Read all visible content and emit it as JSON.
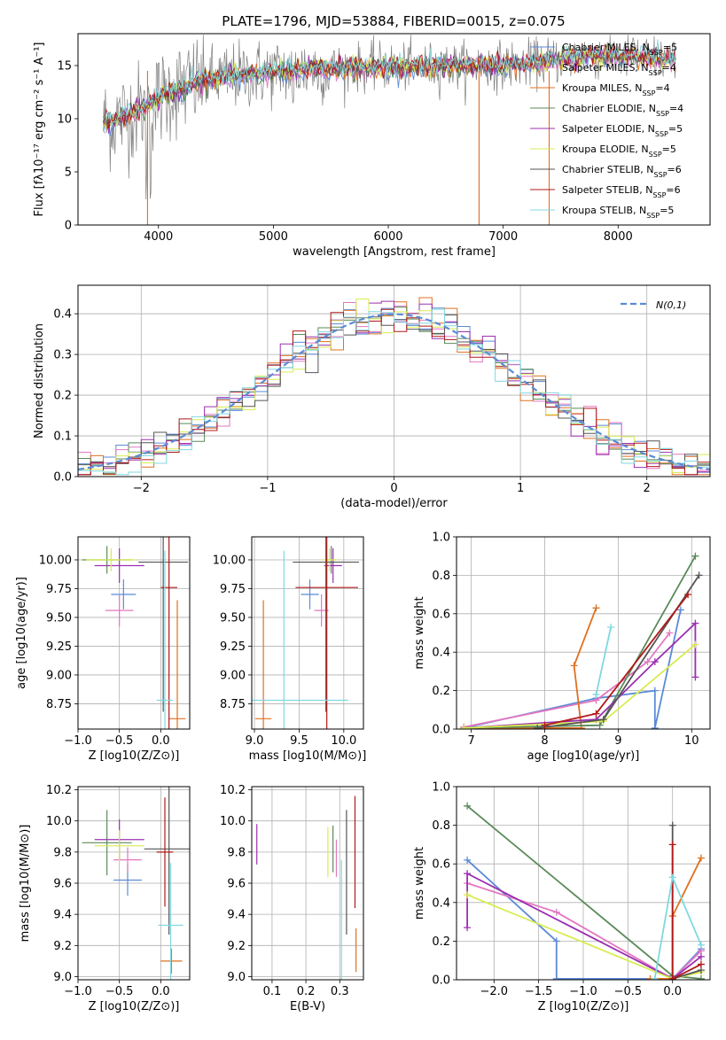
{
  "figure_title": "PLATE=1796, MJD=53884, FIBERID=0015, z=0.075",
  "colors": {
    "chabrier_miles": "#5b8bd6",
    "salpeter_miles": "#e377c2",
    "kroupa_miles": "#e07020",
    "chabrier_elodie": "#5a8a5a",
    "salpeter_elodie": "#9b30b0",
    "kroupa_elodie": "#d8ec50",
    "chabrier_stelib": "#555555",
    "salpeter_stelib": "#b01818",
    "kroupa_stelib": "#80d8e0",
    "normal": "#5b8bd6"
  },
  "chart_data": [
    {
      "id": "spectrum",
      "type": "line",
      "title": "PLATE=1796, MJD=53884, FIBERID=0015, z=0.075",
      "xlabel": "wavelength [Angstrom, rest frame]",
      "ylabel": "Flux [fλ10⁻¹⁷ erg cm⁻² s⁻¹ A⁻¹]",
      "xlim": [
        3300,
        8800
      ],
      "ylim": [
        0,
        18
      ],
      "xticks": [
        4000,
        5000,
        6000,
        7000,
        8000
      ],
      "yticks": [
        0,
        5,
        10,
        15
      ],
      "legend_position": "right",
      "legend": [
        "Chabrier MILES, N_SSP=5",
        "Salpeter MILES, N_SSP=4",
        "Kroupa MILES, N_SSP=4",
        "Chabrier ELODIE, N_SSP=4",
        "Salpeter ELODIE, N_SSP=5",
        "Kroupa ELODIE, N_SSP=5",
        "Chabrier STELIB, N_SSP=6",
        "Salpeter STELIB, N_SSP=6",
        "Kroupa STELIB, N_SSP=5"
      ],
      "continuum": {
        "x": [
          3520,
          3700,
          3900,
          4100,
          4400,
          4800,
          5200,
          5600,
          6000,
          6400,
          6800,
          7200,
          7400,
          7800,
          8200,
          8500
        ],
        "y": [
          9.5,
          10.2,
          11.2,
          12.5,
          13.6,
          14.2,
          14.6,
          14.8,
          14.9,
          14.9,
          15.0,
          15.1,
          15.5,
          16.0,
          15.8,
          15.5
        ]
      }
    },
    {
      "id": "residuals",
      "type": "histogram",
      "xlabel": "(data-model)/error",
      "ylabel": "Normed distribution",
      "xlim": [
        -2.5,
        2.5
      ],
      "ylim": [
        0,
        0.47
      ],
      "xticks": [
        -2,
        -1,
        0,
        1,
        2
      ],
      "yticks": [
        0.0,
        0.1,
        0.2,
        0.3,
        0.4
      ],
      "grid": true,
      "legend_position": "top-right",
      "legend": [
        "N(0,1)"
      ]
    },
    {
      "id": "age_vs_Z",
      "type": "errorbar",
      "xlabel": "Z [log10(Z/Z⊙)]",
      "ylabel": "age [log10(age/yr)]",
      "xlim": [
        -1.0,
        0.35
      ],
      "ylim": [
        8.53,
        10.2
      ],
      "xticks": [
        -1.0,
        -0.5,
        0.0
      ],
      "yticks": [
        8.75,
        9.0,
        9.25,
        9.5,
        9.75,
        10.0
      ],
      "grid": true,
      "points": [
        {
          "model": "chabrier_miles",
          "x": -0.45,
          "xerr": 0.15,
          "y": 9.7,
          "yerr": 0.13
        },
        {
          "model": "salpeter_miles",
          "x": -0.5,
          "xerr": 0.17,
          "y": 9.56,
          "yerr": 0.14
        },
        {
          "model": "kroupa_miles",
          "x": 0.2,
          "xerr": 0.1,
          "y": 8.62,
          "yerr": 1.03
        },
        {
          "model": "chabrier_elodie",
          "x": -0.65,
          "xerr": 0.3,
          "y": 10.0,
          "yerr": 0.12
        },
        {
          "model": "salpeter_elodie",
          "x": -0.5,
          "xerr": 0.3,
          "y": 9.95,
          "yerr": 0.15
        },
        {
          "model": "kroupa_elodie",
          "x": -0.6,
          "xerr": 0.3,
          "y": 10.0,
          "yerr": 0.1
        },
        {
          "model": "chabrier_stelib",
          "x": 0.03,
          "xerr": 0.3,
          "y": 9.98,
          "yerr": 1.3
        },
        {
          "model": "salpeter_stelib",
          "x": 0.1,
          "xerr": 0.1,
          "y": 9.76,
          "yerr": 1.3
        },
        {
          "model": "kroupa_stelib",
          "x": 0.05,
          "xerr": 0.1,
          "y": 8.78,
          "yerr": 1.3
        }
      ]
    },
    {
      "id": "age_vs_mass",
      "type": "errorbar",
      "xlabel": "mass [log10(M/M⊙)]",
      "ylim": [
        8.53,
        10.2
      ],
      "xlim": [
        8.97,
        10.22
      ],
      "xticks": [
        9.0,
        9.5,
        10.0
      ],
      "yticks": [
        8.75,
        9.0,
        9.25,
        9.5,
        9.75,
        10.0
      ],
      "grid": true,
      "points": [
        {
          "model": "chabrier_miles",
          "x": 9.62,
          "xerr": 0.1,
          "y": 9.7,
          "yerr": 0.13
        },
        {
          "model": "salpeter_miles",
          "x": 9.75,
          "xerr": 0.08,
          "y": 9.56,
          "yerr": 0.14
        },
        {
          "model": "kroupa_miles",
          "x": 9.1,
          "xerr": 0.09,
          "y": 8.62,
          "yerr": 1.03
        },
        {
          "model": "chabrier_elodie",
          "x": 9.86,
          "xerr": 0.05,
          "y": 10.0,
          "yerr": 0.12
        },
        {
          "model": "salpeter_elodie",
          "x": 9.88,
          "xerr": 0.1,
          "y": 9.95,
          "yerr": 0.15
        },
        {
          "model": "kroupa_elodie",
          "x": 9.84,
          "xerr": 0.08,
          "y": 10.0,
          "yerr": 0.1
        },
        {
          "model": "chabrier_stelib",
          "x": 9.8,
          "xerr": 0.37,
          "y": 9.98,
          "yerr": 1.3
        },
        {
          "model": "salpeter_stelib",
          "x": 9.81,
          "xerr": 0.35,
          "y": 9.76,
          "yerr": 1.3
        },
        {
          "model": "kroupa_stelib",
          "x": 9.33,
          "xerr": 0.72,
          "y": 8.78,
          "yerr": 1.3
        }
      ]
    },
    {
      "id": "mass_vs_Z",
      "type": "errorbar",
      "xlabel": "Z [log10(Z/Z⊙)]",
      "ylabel": "mass [log10(M/M⊙)]",
      "xlim": [
        -1.0,
        0.35
      ],
      "ylim": [
        8.98,
        10.22
      ],
      "xticks": [
        -1.0,
        -0.5,
        0.0
      ],
      "yticks": [
        9.0,
        9.2,
        9.4,
        9.6,
        9.8,
        10.0,
        10.2
      ],
      "grid": true,
      "points": [
        {
          "model": "chabrier_miles",
          "x": -0.4,
          "xerr": 0.17,
          "y": 9.62,
          "yerr": 0.1
        },
        {
          "model": "salpeter_miles",
          "x": -0.4,
          "xerr": 0.17,
          "y": 9.75,
          "yerr": 0.08
        },
        {
          "model": "kroupa_miles",
          "x": 0.13,
          "xerr": 0.13,
          "y": 9.1,
          "yerr": 0.08
        },
        {
          "model": "chabrier_elodie",
          "x": -0.65,
          "xerr": 0.3,
          "y": 9.86,
          "yerr": 0.21
        },
        {
          "model": "salpeter_elodie",
          "x": -0.5,
          "xerr": 0.3,
          "y": 9.88,
          "yerr": 0.13
        },
        {
          "model": "kroupa_elodie",
          "x": -0.5,
          "xerr": 0.3,
          "y": 9.84,
          "yerr": 0.1
        },
        {
          "model": "chabrier_stelib",
          "x": 0.1,
          "xerr": 0.3,
          "y": 9.82,
          "yerr": 0.55
        },
        {
          "model": "salpeter_stelib",
          "x": 0.05,
          "xerr": 0.1,
          "y": 9.8,
          "yerr": 0.35
        },
        {
          "model": "kroupa_stelib",
          "x": 0.12,
          "xerr": 0.15,
          "y": 9.33,
          "yerr": 0.4
        }
      ]
    },
    {
      "id": "mass_vs_ebv",
      "type": "errorbar",
      "xlabel": "E(B-V)",
      "xlim": [
        0.04,
        0.37
      ],
      "ylim": [
        8.98,
        10.22
      ],
      "xticks": [
        0.1,
        0.2,
        0.3
      ],
      "yticks": [
        9.0,
        9.2,
        9.4,
        9.6,
        9.8,
        10.0,
        10.2
      ],
      "grid": true,
      "points": [
        {
          "model": "salpeter_elodie",
          "x": 0.055,
          "xerr": 0,
          "y": 9.85,
          "yerr": 0.13
        },
        {
          "model": "kroupa_elodie",
          "x": 0.265,
          "xerr": 0,
          "y": 9.8,
          "yerr": 0.16
        },
        {
          "model": "chabrier_elodie",
          "x": 0.28,
          "xerr": 0,
          "y": 9.82,
          "yerr": 0.15
        },
        {
          "model": "salpeter_miles",
          "x": 0.29,
          "xerr": 0,
          "y": 9.76,
          "yerr": 0.12
        },
        {
          "model": "kroupa_stelib",
          "x": 0.305,
          "xerr": 0,
          "y": 9.35,
          "yerr": 0.4
        },
        {
          "model": "chabrier_stelib",
          "x": 0.32,
          "xerr": 0,
          "y": 9.67,
          "yerr": 0.4
        },
        {
          "model": "salpeter_stelib",
          "x": 0.345,
          "xerr": 0,
          "y": 9.8,
          "yerr": 0.36
        },
        {
          "model": "kroupa_miles",
          "x": 0.348,
          "xerr": 0,
          "y": 9.17,
          "yerr": 0.14
        }
      ]
    },
    {
      "id": "massweight_vs_age",
      "type": "line",
      "xlabel": "age [log10(age/yr)]",
      "ylabel": "mass weight",
      "xlim": [
        6.8,
        10.25
      ],
      "ylim": [
        0,
        1.0
      ],
      "xticks": [
        7,
        8,
        9,
        10
      ],
      "yticks": [
        0.0,
        0.2,
        0.4,
        0.6,
        0.8,
        1.0
      ],
      "grid": true,
      "series": [
        {
          "model": "chabrier_miles",
          "x": [
            6.9,
            8.7,
            9.5,
            9.5,
            9.85
          ],
          "y": [
            0.005,
            0.16,
            0.2,
            0.005,
            0.62
          ]
        },
        {
          "model": "salpeter_miles",
          "x": [
            6.9,
            8.7,
            9.4,
            9.7
          ],
          "y": [
            0.01,
            0.15,
            0.35,
            0.5
          ]
        },
        {
          "model": "kroupa_miles",
          "x": [
            6.9,
            8.5,
            8.4,
            8.7
          ],
          "y": [
            0.005,
            0.005,
            0.33,
            0.63
          ]
        },
        {
          "model": "chabrier_elodie",
          "x": [
            6.9,
            8.75,
            10.05
          ],
          "y": [
            0.005,
            0.02,
            0.9
          ]
        },
        {
          "model": "salpeter_elodie",
          "x": [
            6.9,
            8.7,
            9.5,
            10.05,
            10.05
          ],
          "y": [
            0.005,
            0.05,
            0.35,
            0.55,
            0.27
          ]
        },
        {
          "model": "kroupa_elodie",
          "x": [
            6.9,
            8.8,
            10.05
          ],
          "y": [
            0.005,
            0.04,
            0.44
          ]
        },
        {
          "model": "chabrier_stelib",
          "x": [
            7.9,
            8.8,
            10.1
          ],
          "y": [
            0.005,
            0.05,
            0.8
          ]
        },
        {
          "model": "salpeter_stelib",
          "x": [
            8.0,
            8.7,
            9.95
          ],
          "y": [
            0.02,
            0.08,
            0.7
          ]
        },
        {
          "model": "kroupa_stelib",
          "x": [
            8.7,
            8.9
          ],
          "y": [
            0.18,
            0.53
          ]
        }
      ]
    },
    {
      "id": "massweight_vs_Z",
      "type": "line",
      "xlabel": "Z [log10(Z/Z⊙)]",
      "ylabel": "mass weight",
      "xlim": [
        -2.42,
        0.42
      ],
      "ylim": [
        0,
        1.0
      ],
      "xticks": [
        -2.0,
        -1.5,
        -1.0,
        -0.5,
        0.0
      ],
      "yticks": [
        0.0,
        0.2,
        0.4,
        0.6,
        0.8,
        1.0
      ],
      "grid": true,
      "series": [
        {
          "model": "chabrier_miles",
          "x": [
            -2.3,
            -1.3,
            -1.3,
            0.0,
            0.32
          ],
          "y": [
            0.62,
            0.2,
            0.005,
            0.005,
            0.16
          ]
        },
        {
          "model": "salpeter_miles",
          "x": [
            -2.3,
            -1.3,
            0.0,
            0.32
          ],
          "y": [
            0.5,
            0.35,
            0.005,
            0.15
          ]
        },
        {
          "model": "kroupa_miles",
          "x": [
            -0.25,
            0.0,
            0.0,
            0.32
          ],
          "y": [
            0.005,
            0.005,
            0.33,
            0.63
          ]
        },
        {
          "model": "chabrier_elodie",
          "x": [
            -2.3,
            0.0,
            0.32
          ],
          "y": [
            0.9,
            0.02,
            0.005
          ]
        },
        {
          "model": "salpeter_elodie",
          "x": [
            -2.3,
            -2.3,
            0.0,
            0.32
          ],
          "y": [
            0.27,
            0.55,
            0.005,
            0.12
          ]
        },
        {
          "model": "kroupa_elodie",
          "x": [
            -2.3,
            0.0,
            0.32
          ],
          "y": [
            0.44,
            0.005,
            0.04
          ]
        },
        {
          "model": "chabrier_stelib",
          "x": [
            0.0,
            0.0,
            0.32
          ],
          "y": [
            0.8,
            0.005,
            0.05
          ]
        },
        {
          "model": "salpeter_stelib",
          "x": [
            0.0,
            0.0,
            0.32
          ],
          "y": [
            0.7,
            0.005,
            0.08
          ]
        },
        {
          "model": "kroupa_stelib",
          "x": [
            -0.2,
            0.0,
            0.32
          ],
          "y": [
            0.005,
            0.53,
            0.18
          ]
        }
      ]
    }
  ]
}
